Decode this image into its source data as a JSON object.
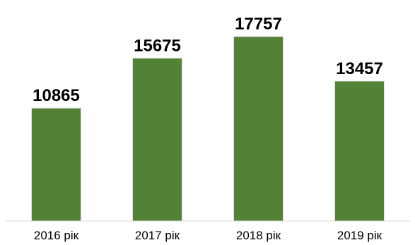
{
  "chart_data": {
    "type": "bar",
    "categories": [
      "2016 рік",
      "2017 рік",
      "2018 рік",
      "2019 рік"
    ],
    "values": [
      10865,
      15675,
      17757,
      13457
    ],
    "title": "",
    "xlabel": "",
    "ylabel": "",
    "ylim": [
      0,
      19500
    ],
    "grid": false,
    "legend": "none",
    "data_labels": true,
    "colors": {
      "bar_fill": "#538135",
      "bar_edge": "#e0e0e0",
      "axis_line": "#d9d9d9",
      "text": "#000000"
    }
  }
}
